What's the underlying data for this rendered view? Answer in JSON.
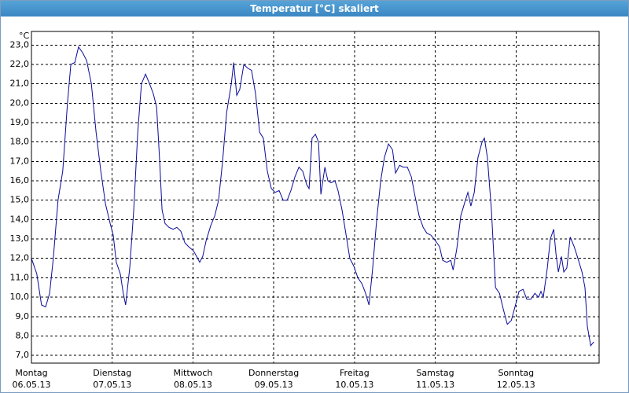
{
  "window_title": "Temperatur [°C] skaliert",
  "chart_data": {
    "type": "line",
    "ylabel": "°C",
    "color": "#0a0a9a",
    "grid": true,
    "xlim": [
      0,
      168.7
    ],
    "ylim": [
      6.6,
      23.7
    ],
    "xticks": [
      {
        "value": 0,
        "label": "Montag"
      },
      {
        "value": 24,
        "label": "Dienstag"
      },
      {
        "value": 48,
        "label": "Mittwoch"
      },
      {
        "value": 72,
        "label": "Donnerstag"
      },
      {
        "value": 96,
        "label": "Freitag"
      },
      {
        "value": 120,
        "label": "Samstag"
      },
      {
        "value": 144,
        "label": "Sonntag"
      }
    ],
    "xtick_dates": [
      "06.05.13",
      "07.05.13",
      "08.05.13",
      "09.05.13",
      "10.05.13",
      "11.05.13",
      "12.05.13"
    ],
    "yticks": [
      {
        "value": 7,
        "label": "7,0"
      },
      {
        "value": 8,
        "label": "8,0"
      },
      {
        "value": 9,
        "label": "9,0"
      },
      {
        "value": 10,
        "label": "10,0"
      },
      {
        "value": 11,
        "label": "11,0"
      },
      {
        "value": 12,
        "label": "12,0"
      },
      {
        "value": 13,
        "label": "13,0"
      },
      {
        "value": 14,
        "label": "14,0"
      },
      {
        "value": 15,
        "label": "15,0"
      },
      {
        "value": 16,
        "label": "16,0"
      },
      {
        "value": 17,
        "label": "17,0"
      },
      {
        "value": 18,
        "label": "18,0"
      },
      {
        "value": 19,
        "label": "19,0"
      },
      {
        "value": 20,
        "label": "20,0"
      },
      {
        "value": 21,
        "label": "21,0"
      },
      {
        "value": 22,
        "label": "22,0"
      },
      {
        "value": 23,
        "label": "23,0"
      }
    ],
    "x": [
      0,
      1.6,
      3.0,
      4.2,
      5.4,
      6.5,
      7.9,
      9.3,
      10.7,
      11.7,
      12.9,
      14.0,
      15.2,
      16.4,
      17.8,
      19.2,
      20.6,
      22.0,
      23.4,
      24.3,
      25.2,
      26.4,
      27.3,
      28.0,
      29.2,
      30.4,
      31.6,
      32.7,
      33.9,
      35.1,
      36.2,
      37.2,
      38.1,
      38.8,
      39.7,
      40.9,
      42.1,
      43.2,
      44.4,
      45.6,
      46.7,
      48.1,
      49.1,
      50.0,
      50.9,
      51.9,
      53.3,
      54.5,
      55.6,
      56.8,
      58.0,
      59.4,
      60.1,
      61.0,
      61.9,
      63.1,
      64.3,
      65.4,
      66.6,
      67.8,
      68.9,
      70.1,
      71.3,
      72.4,
      73.6,
      74.8,
      76.0,
      77.1,
      78.3,
      79.5,
      80.6,
      81.8,
      82.5,
      83.4,
      84.4,
      85.3,
      86.0,
      87.2,
      88.1,
      89.0,
      90.2,
      91.1,
      92.3,
      93.5,
      94.6,
      95.8,
      97.0,
      98.2,
      99.3,
      100.3,
      101.4,
      102.6,
      103.8,
      104.9,
      106.1,
      107.3,
      108.2,
      109.4,
      110.5,
      111.7,
      112.9,
      114.0,
      115.2,
      116.4,
      117.5,
      118.7,
      120.1,
      121.3,
      122.2,
      123.4,
      124.6,
      125.3,
      126.4,
      127.6,
      128.8,
      129.7,
      130.6,
      131.6,
      132.7,
      133.9,
      134.6,
      135.5,
      136.7,
      137.9,
      139.1,
      140.2,
      141.4,
      142.6,
      143.7,
      144.9,
      146.1,
      147.2,
      148.4,
      149.6,
      150.7,
      151.4,
      152.1,
      153.3,
      154.2,
      155.2,
      155.9,
      156.6,
      157.5,
      158.2,
      159.1,
      160.1,
      161.3,
      162.4,
      163.6,
      164.5,
      165.2,
      166.2,
      167.1
    ],
    "series": [
      {
        "name": "Temperatur",
        "color": "#0a0a9a",
        "values": [
          12.0,
          11.2,
          9.6,
          9.5,
          10.2,
          12.0,
          15.0,
          16.5,
          20.0,
          22.0,
          22.1,
          22.9,
          22.6,
          22.2,
          21.0,
          18.5,
          16.5,
          14.8,
          13.8,
          13.2,
          11.8,
          11.2,
          10.2,
          9.6,
          11.5,
          14.5,
          18.5,
          21.0,
          21.5,
          21.0,
          20.5,
          19.8,
          17.0,
          14.5,
          13.8,
          13.6,
          13.5,
          13.6,
          13.4,
          12.8,
          12.6,
          12.4,
          12.1,
          11.8,
          12.1,
          12.9,
          13.7,
          14.2,
          15.0,
          17.0,
          19.5,
          21.0,
          22.1,
          20.4,
          20.7,
          22.0,
          21.8,
          21.7,
          20.5,
          18.5,
          18.2,
          16.5,
          15.6,
          15.4,
          15.5,
          15.0,
          15.0,
          15.5,
          16.2,
          16.7,
          16.5,
          15.8,
          15.6,
          18.2,
          18.4,
          18.0,
          15.3,
          16.7,
          16.0,
          15.9,
          16.0,
          15.5,
          14.5,
          13.2,
          12.0,
          11.6,
          11.0,
          10.7,
          10.2,
          9.6,
          11.5,
          14.0,
          16.0,
          17.2,
          17.9,
          17.6,
          16.4,
          16.8,
          16.7,
          16.7,
          16.2,
          15.2,
          14.2,
          13.6,
          13.3,
          13.2,
          12.9,
          12.6,
          11.9,
          11.8,
          11.9,
          11.4,
          12.5,
          14.2,
          14.9,
          15.4,
          14.7,
          15.4,
          17.2,
          18.0,
          18.2,
          17.2,
          14.5,
          10.5,
          10.2,
          9.4,
          8.6,
          8.8,
          9.5,
          10.3,
          10.4,
          9.9,
          9.9,
          10.2,
          10.0,
          10.3,
          10.0,
          11.5,
          13.0,
          13.5,
          12.2,
          11.3,
          12.1,
          11.3,
          11.5,
          13.1,
          12.6,
          12.0,
          11.3,
          10.5,
          8.5,
          7.5,
          7.7
        ]
      }
    ]
  }
}
